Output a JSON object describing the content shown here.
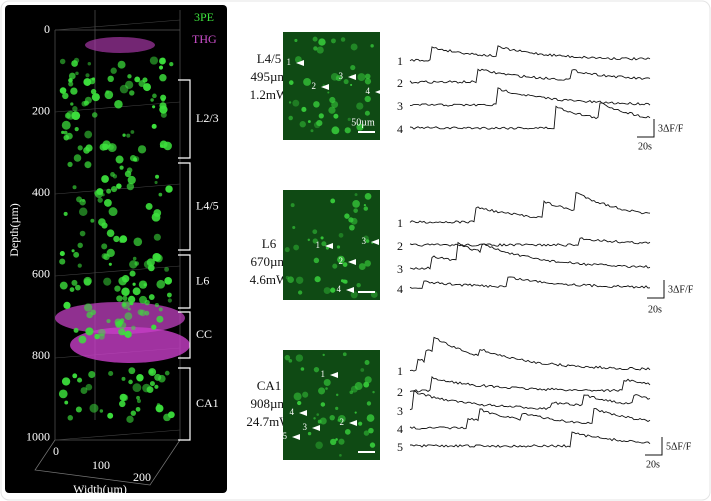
{
  "volume": {
    "legend": [
      "3PE",
      "THG"
    ],
    "depth_ticks": [
      "0",
      "200",
      "400",
      "600",
      "800",
      "1000"
    ],
    "depth_label": "Depth(µm)",
    "width_ticks": [
      "0",
      "100",
      "200"
    ],
    "width_label": "Width(µm)",
    "layers": [
      "L2/3",
      "L4/5",
      "L6",
      "CC",
      "CA1"
    ]
  },
  "regions": [
    {
      "name": "L4/5",
      "depth": "495µm",
      "power": "1.2mW",
      "scale_bar": "50µm",
      "cells": [
        "1",
        "2",
        "3",
        "4"
      ],
      "traces": [
        "1",
        "2",
        "3",
        "4"
      ],
      "amplitude": "3ΔF/F",
      "time": "20s"
    },
    {
      "name": "L6",
      "depth": "670µm",
      "power": "4.6mW",
      "cells": [
        "1",
        "2",
        "3",
        "4"
      ],
      "traces": [
        "1",
        "2",
        "3",
        "4"
      ],
      "amplitude": "3ΔF/F",
      "time": "20s"
    },
    {
      "name": "CA1",
      "depth": "908µm",
      "power": "24.7mW",
      "cells": [
        "1",
        "2",
        "3",
        "4",
        "5"
      ],
      "traces": [
        "1",
        "2",
        "3",
        "4",
        "5"
      ],
      "amplitude": "5ΔF/F",
      "time": "20s"
    }
  ]
}
